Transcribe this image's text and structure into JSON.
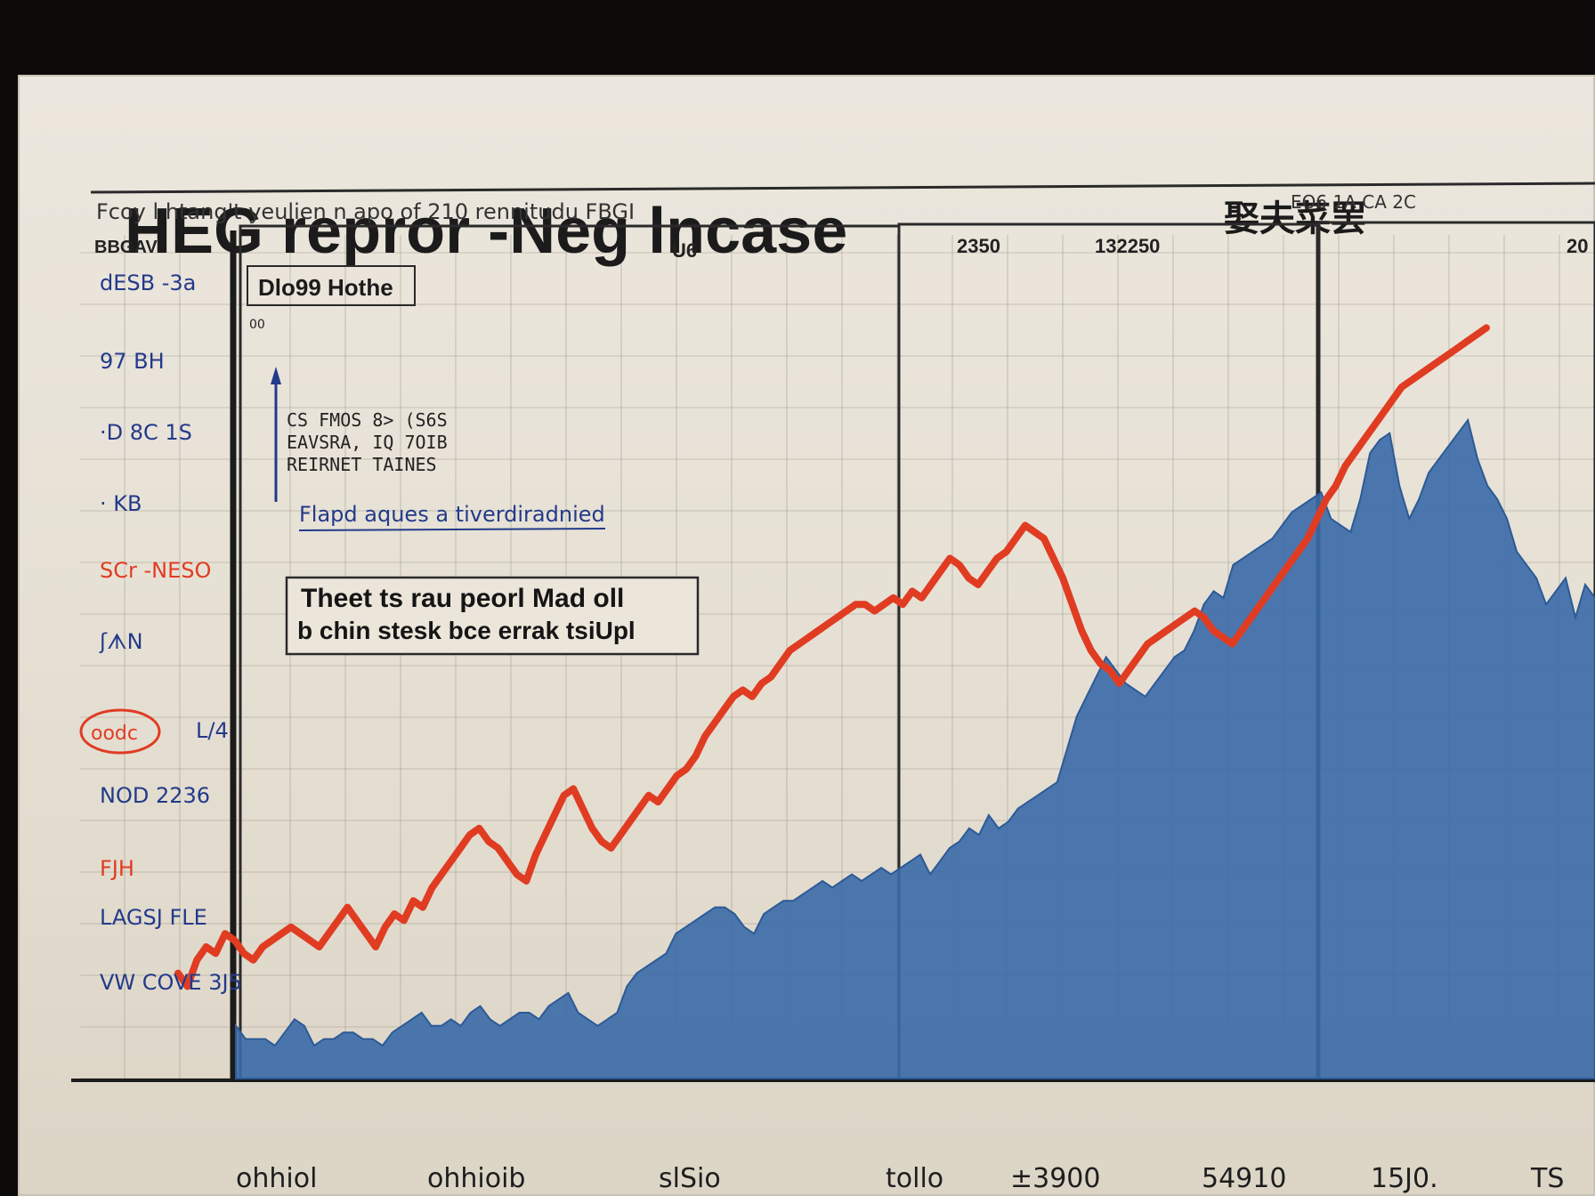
{
  "chart_data": {
    "type": "area",
    "title": "HEG repror -Neg lncase",
    "subtitle": "Fcoy l htang't yeulien n apo of 210 rennitudu FBGI",
    "title_cjk": "娶夫菜罢",
    "top_right_label": "EO6 1A CA 2C",
    "side_header": "BBGAV",
    "panel_labels": [
      "U6",
      "2350",
      "132250",
      "20"
    ],
    "legend_box": "Dlo99 Hothe",
    "legend_marker": "00",
    "notes": [
      "CS FMOS 8> (S6S",
      "EAVSRA, IQ 7OIB",
      "REIRNET TAINES"
    ],
    "callout_caption": "Flapd aques a tiverdiradnied",
    "annotation_lines": [
      "Theet ts rau peorl Mad oll",
      "b chin stesk bce errak tsiUpl"
    ],
    "y_labels_left": [
      "dESB -3a",
      "97 BH",
      "·D 8C 1S",
      "· KB",
      "SCr -NESO",
      "ʃᗑN",
      "L/4",
      "NOD 2236",
      "FJH",
      "LAGSJ FLE",
      "VW COVE 3J5"
    ],
    "y_label_circled": "oodc",
    "x_labels": [
      "ohhiol",
      "ohhioib",
      "slSio",
      "tollo",
      "±3900",
      "54910",
      "15J0.",
      "TS"
    ],
    "series": [
      {
        "kind": "area",
        "color": "#3a6aa8",
        "values": [
          8,
          6,
          6,
          6,
          5,
          7,
          9,
          8,
          5,
          6,
          6,
          7,
          7,
          6,
          6,
          5,
          7,
          8,
          9,
          10,
          8,
          8,
          9,
          8,
          10,
          11,
          9,
          8,
          9,
          10,
          10,
          9,
          11,
          12,
          13,
          10,
          9,
          8,
          9,
          10,
          14,
          16,
          17,
          18,
          19,
          22,
          23,
          24,
          25,
          26,
          26,
          25,
          23,
          22,
          25,
          26,
          27,
          27,
          28,
          29,
          30,
          29,
          30,
          31,
          30,
          31,
          32,
          31,
          32,
          33,
          34,
          31,
          33,
          35,
          36,
          38,
          37,
          40,
          38,
          39,
          41,
          42,
          43,
          44,
          45,
          50,
          55,
          58,
          61,
          64,
          62,
          60,
          59,
          58,
          60,
          62,
          64,
          65,
          68,
          72,
          74,
          73,
          78,
          79,
          80,
          81,
          82,
          84,
          86,
          87,
          88,
          89,
          85,
          84,
          83,
          88,
          95,
          97,
          98,
          90,
          85,
          88,
          92,
          94,
          96,
          98,
          100,
          94,
          90,
          88,
          85,
          80,
          78,
          76,
          72,
          74,
          76,
          70,
          75,
          73
        ]
      },
      {
        "kind": "line",
        "color": "#e03c22",
        "values": [
          16,
          14,
          18,
          20,
          19,
          22,
          21,
          19,
          18,
          20,
          21,
          22,
          23,
          22,
          21,
          20,
          22,
          24,
          26,
          24,
          22,
          20,
          23,
          25,
          24,
          27,
          26,
          29,
          31,
          33,
          35,
          37,
          38,
          36,
          35,
          33,
          31,
          30,
          34,
          37,
          40,
          43,
          44,
          41,
          38,
          36,
          35,
          37,
          39,
          41,
          43,
          42,
          44,
          46,
          47,
          49,
          52,
          54,
          56,
          58,
          59,
          58,
          60,
          61,
          63,
          65,
          66,
          67,
          68,
          69,
          70,
          71,
          72,
          72,
          71,
          72,
          73,
          72,
          74,
          73,
          75,
          77,
          79,
          78,
          76,
          75,
          77,
          79,
          80,
          82,
          84,
          83,
          82,
          79,
          76,
          72,
          68,
          65,
          63,
          62,
          60,
          62,
          64,
          66,
          67,
          68,
          69,
          70,
          71,
          70,
          68,
          67,
          66,
          68,
          70,
          72,
          74,
          76,
          78,
          80,
          82,
          85,
          88,
          90,
          93,
          95,
          97,
          99,
          101,
          103,
          105,
          106,
          107,
          108,
          109,
          110,
          111,
          112,
          113,
          114
        ]
      }
    ],
    "ylim": [
      0,
      120
    ],
    "grid": true
  }
}
